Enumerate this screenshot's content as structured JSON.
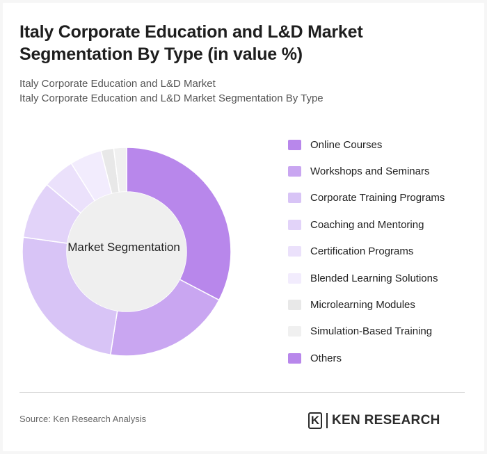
{
  "header": {
    "title": "Italy Corporate Education and L&D Market Segmentation By Type (in value %)",
    "subtitle_line1": "Italy Corporate Education and L&D Market",
    "subtitle_line2": "Italy Corporate Education and L&D Market Segmentation By Type"
  },
  "chart_data": {
    "type": "donut",
    "center_label": "Market Segmentation",
    "legend_position": "right",
    "series": [
      {
        "name": "Online Courses",
        "value": 33,
        "color": "#b887eb"
      },
      {
        "name": "Workshops and Seminars",
        "value": 20,
        "color": "#c9a6f1"
      },
      {
        "name": "Corporate Training Programs",
        "value": 25,
        "color": "#d8c4f6"
      },
      {
        "name": "Coaching and Mentoring",
        "value": 9,
        "color": "#e2d3f9"
      },
      {
        "name": "Certification Programs",
        "value": 5,
        "color": "#ebe1fb"
      },
      {
        "name": "Blended Learning Solutions",
        "value": 5,
        "color": "#f2ecfd"
      },
      {
        "name": "Microlearning Modules",
        "value": 2,
        "color": "#e8e8e8"
      },
      {
        "name": "Simulation-Based Training",
        "value": 2,
        "color": "#f0f0f0"
      },
      {
        "name": "Others",
        "value": 0,
        "color": "#b887eb"
      }
    ]
  },
  "footer": {
    "source": "Source: Ken Research Analysis",
    "logo_mark": "K",
    "logo_text": "KEN RESEARCH"
  }
}
